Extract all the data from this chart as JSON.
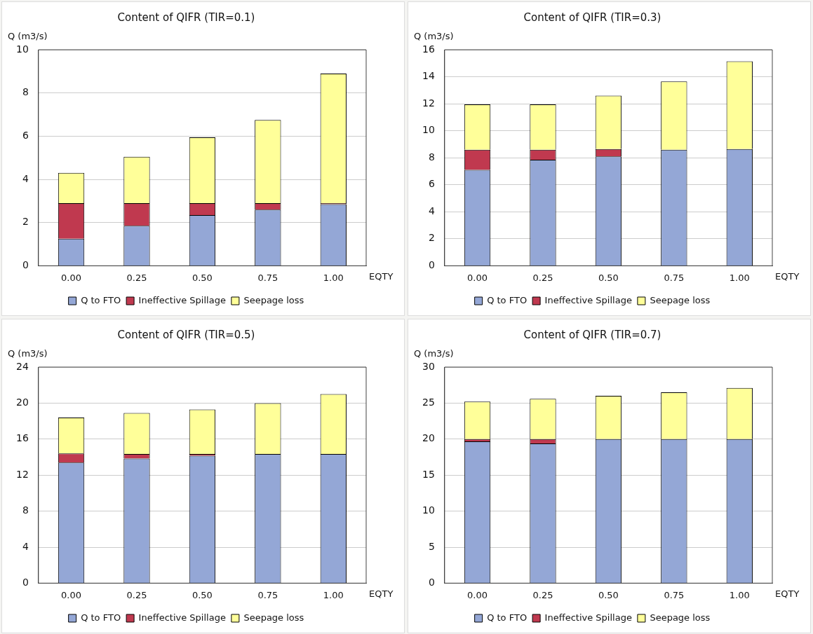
{
  "chart_data": [
    {
      "type": "bar",
      "title": "Content of QIFR (TIR=0.1)",
      "ylabel": "Q (m3/s)",
      "xlabel": "EQTY",
      "categories": [
        "0.00",
        "0.25",
        "0.50",
        "0.75",
        "1.00"
      ],
      "stacked": true,
      "grid": "y",
      "legend": "bottom",
      "ylim": [
        0,
        10
      ],
      "yticks": [
        0,
        2,
        4,
        6,
        8,
        10
      ],
      "series": [
        {
          "name": "Q to FTO",
          "color": "#94a7d6",
          "values": [
            1.25,
            1.85,
            2.35,
            2.6,
            2.85
          ]
        },
        {
          "name": "Ineffective Spillage",
          "color": "#c0394f",
          "values": [
            1.65,
            1.05,
            0.55,
            0.3,
            0.05
          ]
        },
        {
          "name": "Seepage loss",
          "color": "#ffff99",
          "values": [
            1.4,
            2.15,
            3.05,
            3.85,
            6.0
          ]
        }
      ]
    },
    {
      "type": "bar",
      "title": "Content of QIFR (TIR=0.3)",
      "ylabel": "Q (m3/s)",
      "xlabel": "EQTY",
      "categories": [
        "0.00",
        "0.25",
        "0.50",
        "0.75",
        "1.00"
      ],
      "stacked": true,
      "grid": "y",
      "legend": "bottom",
      "ylim": [
        0,
        16
      ],
      "yticks": [
        0,
        2,
        4,
        6,
        8,
        10,
        12,
        14,
        16
      ],
      "series": [
        {
          "name": "Q to FTO",
          "color": "#94a7d6",
          "values": [
            7.1,
            7.85,
            8.1,
            8.6,
            8.65
          ]
        },
        {
          "name": "Ineffective Spillage",
          "color": "#c0394f",
          "values": [
            1.5,
            0.75,
            0.55,
            null,
            0
          ]
        },
        {
          "name": "Seepage loss",
          "color": "#ffff99",
          "values": [
            3.35,
            3.35,
            3.95,
            5.05,
            6.5
          ]
        }
      ]
    },
    {
      "type": "bar",
      "title": "Content of QIFR (TIR=0.5)",
      "ylabel": "Q (m3/s)",
      "xlabel": "EQTY",
      "categories": [
        "0.00",
        "0.25",
        "0.50",
        "0.75",
        "1.00"
      ],
      "stacked": true,
      "grid": "y",
      "legend": "bottom",
      "ylim": [
        0,
        24
      ],
      "yticks": [
        0,
        4,
        8,
        12,
        16,
        20,
        24
      ],
      "series": [
        {
          "name": "Q to FTO",
          "color": "#94a7d6",
          "values": [
            13.4,
            13.85,
            14.15,
            14.35,
            14.35
          ]
        },
        {
          "name": "Ineffective Spillage",
          "color": "#c0394f",
          "values": [
            1.0,
            0.5,
            0.2,
            0,
            0
          ]
        },
        {
          "name": "Seepage loss",
          "color": "#ffff99",
          "values": [
            4.0,
            4.55,
            4.95,
            5.65,
            6.65
          ]
        }
      ]
    },
    {
      "type": "bar",
      "title": "Content of QIFR (TIR=0.7)",
      "ylabel": "Q (m3/s)",
      "xlabel": "EQTY",
      "categories": [
        "0.00",
        "0.25",
        "0.50",
        "0.75",
        "1.00"
      ],
      "stacked": true,
      "grid": "y",
      "legend": "bottom",
      "ylim": [
        0,
        30
      ],
      "yticks": [
        0,
        5,
        10,
        15,
        20,
        25,
        30
      ],
      "series": [
        {
          "name": "Q to FTO",
          "color": "#94a7d6",
          "values": [
            19.7,
            19.4,
            20.0,
            20.0,
            20.0
          ]
        },
        {
          "name": "Ineffective Spillage",
          "color": "#c0394f",
          "values": [
            0.3,
            0.6,
            0,
            0,
            0
          ]
        },
        {
          "name": "Seepage loss",
          "color": "#ffff99",
          "values": [
            5.2,
            5.6,
            6.0,
            6.5,
            7.1
          ]
        }
      ]
    }
  ]
}
